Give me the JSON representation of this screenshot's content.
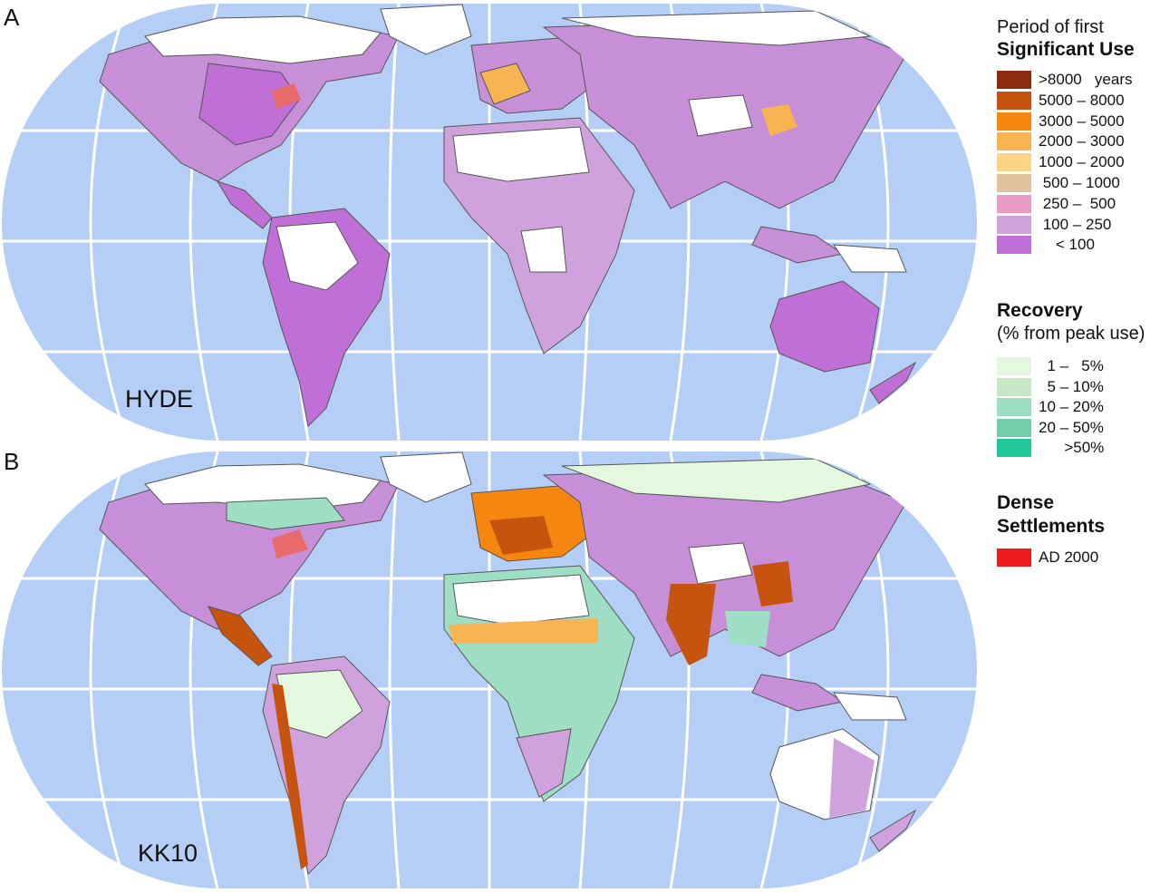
{
  "panels": [
    {
      "letter": "A",
      "dataset": "HYDE"
    },
    {
      "letter": "B",
      "dataset": "KK10"
    }
  ],
  "legend": {
    "significant_use": {
      "heading_line1": "Period of first",
      "heading_line2": "Significant Use",
      "items": [
        {
          "label": ">8000   years",
          "color": "#8b2a0c"
        },
        {
          "label": "5000 – 8000",
          "color": "#c6540f"
        },
        {
          "label": "3000 – 5000",
          "color": "#f5860f"
        },
        {
          "label": "2000 – 3000",
          "color": "#f8b452"
        },
        {
          "label": "1000 – 2000",
          "color": "#fcd486"
        },
        {
          "label": " 500 – 1000",
          "color": "#e2c29c"
        },
        {
          "label": " 250 –  500",
          "color": "#e89bc5"
        },
        {
          "label": " 100 – 250",
          "color": "#cfa2dd"
        },
        {
          "label": "    < 100",
          "color": "#bf6fd6"
        }
      ]
    },
    "recovery": {
      "heading_line1": "Recovery",
      "heading_line2": "(% from peak use)",
      "items": [
        {
          "label": "  1 –   5%",
          "color": "#e4f8e0"
        },
        {
          "label": "  5 – 10%",
          "color": "#c6e8c4"
        },
        {
          "label": "10 – 20%",
          "color": "#9edec4"
        },
        {
          "label": "20 – 50%",
          "color": "#73cfa9"
        },
        {
          "label": "      >50%",
          "color": "#22c79a"
        }
      ]
    },
    "dense_settlements": {
      "heading_line1": "Dense",
      "heading_line2": "Settlements",
      "items": [
        {
          "label": "AD 2000",
          "color": "#ee1c1c"
        }
      ]
    }
  },
  "colors": {
    "ocean": "#b5cef5",
    "graticule": "#ffffff",
    "ice_land": "#ffffff",
    "coast": "#555555"
  }
}
